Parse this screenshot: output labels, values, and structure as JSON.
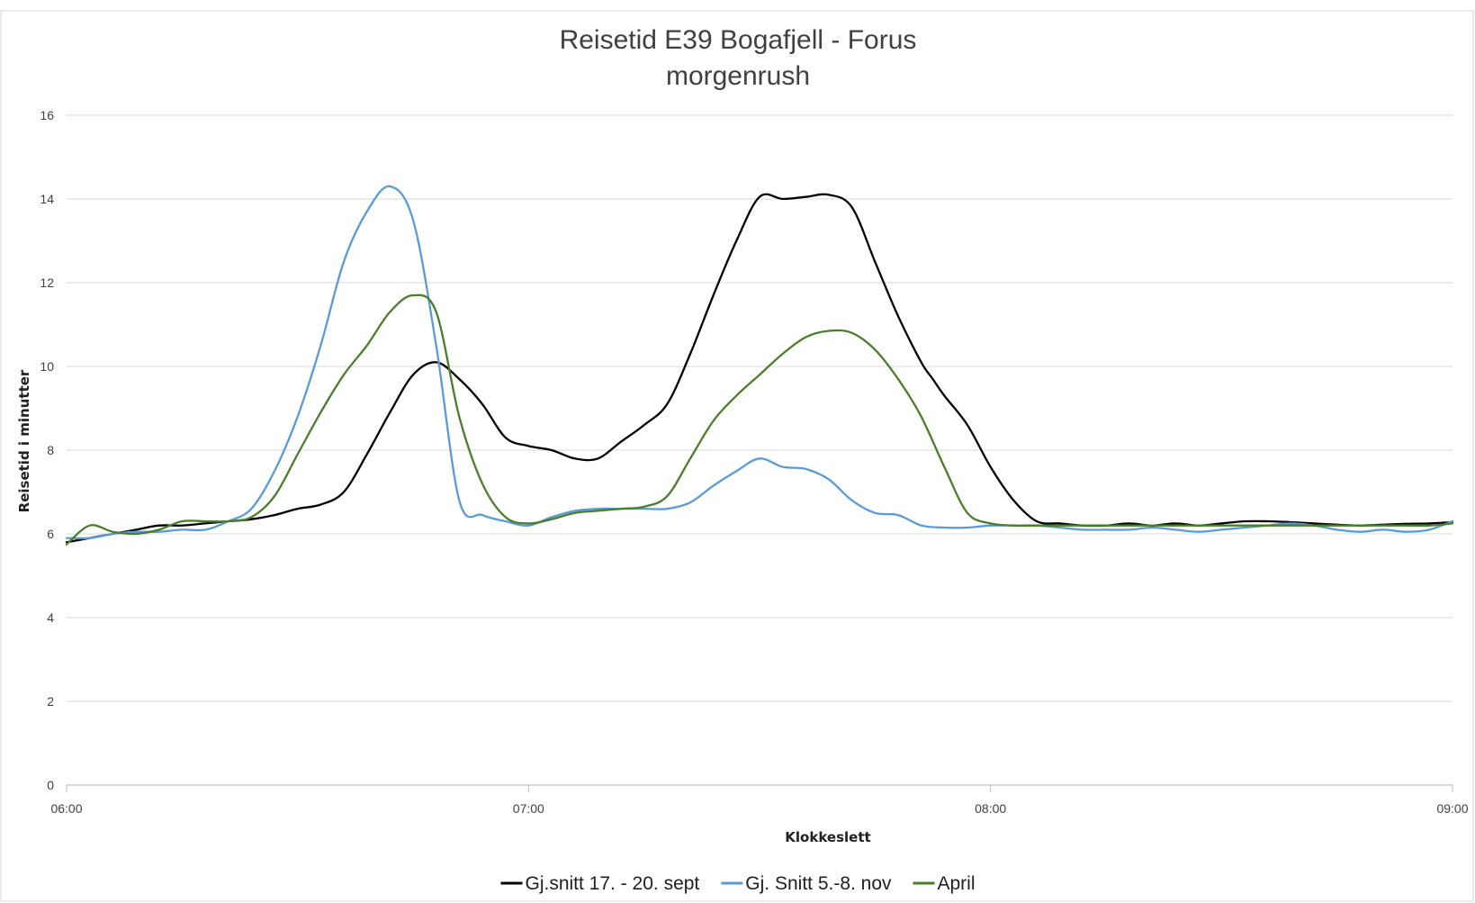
{
  "chart_data": {
    "type": "line",
    "title": "Reisetid E39 Bogafjell - Forus",
    "subtitle": "morgenrush",
    "xlabel": "Klokkeslett",
    "ylabel": "Reisetid i minutter",
    "x_ticks": [
      "06:00",
      "07:00",
      "08:00",
      "09:00"
    ],
    "xlim": [
      0,
      180
    ],
    "y_ticks": [
      "0",
      "2",
      "4",
      "6",
      "8",
      "10",
      "12",
      "14",
      "16"
    ],
    "ylim": [
      0,
      16
    ],
    "grid": "horizontal",
    "legend_position": "bottom",
    "series": [
      {
        "name": "Gj.snitt 17. - 20. sept",
        "color": "#000000",
        "x": [
          0,
          3,
          6,
          9,
          12,
          15,
          18,
          21,
          24,
          27,
          30,
          33,
          36,
          39,
          42,
          45,
          48,
          51,
          54,
          57,
          60,
          63,
          66,
          69,
          72,
          75,
          78,
          81,
          84,
          87,
          90,
          93,
          96,
          99,
          102,
          105,
          108,
          111,
          112.5,
          114,
          117,
          120,
          123,
          126,
          129,
          132,
          135,
          138,
          141,
          144,
          147,
          150,
          153,
          156,
          159,
          162,
          165,
          168,
          171,
          174,
          177,
          180
        ],
        "values": [
          5.8,
          5.9,
          6.0,
          6.1,
          6.2,
          6.2,
          6.25,
          6.3,
          6.35,
          6.45,
          6.6,
          6.7,
          7.0,
          7.9,
          8.9,
          9.8,
          10.1,
          9.7,
          9.1,
          8.3,
          8.1,
          8.0,
          7.8,
          7.8,
          8.2,
          8.6,
          9.1,
          10.3,
          11.7,
          13.0,
          14.05,
          14.0,
          14.05,
          14.1,
          13.8,
          12.5,
          11.2,
          10.1,
          9.7,
          9.3,
          8.6,
          7.6,
          6.8,
          6.3,
          6.25,
          6.2,
          6.2,
          6.25,
          6.2,
          6.25,
          6.2,
          6.25,
          6.3,
          6.3,
          6.28,
          6.25,
          6.22,
          6.2,
          6.22,
          6.24,
          6.25,
          6.28
        ]
      },
      {
        "name": "Gj. Snitt 5.-8. nov",
        "color": "#5b9bd5",
        "x": [
          0,
          3,
          6,
          9,
          12,
          15,
          18,
          21,
          24,
          27,
          30,
          33,
          36,
          39,
          42,
          45,
          48,
          51,
          54,
          57,
          60,
          63,
          66,
          69,
          72,
          75,
          78,
          81,
          84,
          87,
          90,
          93,
          96,
          99,
          102,
          105,
          108,
          111,
          114,
          117,
          120,
          123,
          126,
          129,
          132,
          135,
          138,
          141,
          144,
          147,
          150,
          153,
          156,
          159,
          162,
          165,
          168,
          171,
          174,
          177,
          180
        ],
        "values": [
          5.9,
          5.9,
          6.0,
          6.05,
          6.05,
          6.1,
          6.1,
          6.3,
          6.6,
          7.5,
          8.8,
          10.5,
          12.5,
          13.7,
          14.3,
          13.5,
          10.5,
          6.8,
          6.45,
          6.3,
          6.2,
          6.4,
          6.55,
          6.6,
          6.6,
          6.6,
          6.6,
          6.75,
          7.15,
          7.5,
          7.8,
          7.6,
          7.55,
          7.3,
          6.8,
          6.5,
          6.45,
          6.2,
          6.15,
          6.15,
          6.2,
          6.2,
          6.2,
          6.15,
          6.1,
          6.1,
          6.1,
          6.15,
          6.1,
          6.05,
          6.1,
          6.15,
          6.2,
          6.25,
          6.2,
          6.1,
          6.05,
          6.1,
          6.05,
          6.1,
          6.3
        ]
      },
      {
        "name": "April",
        "color": "#4a7d2c",
        "x": [
          0,
          3,
          6,
          9,
          12,
          15,
          18,
          21,
          24,
          27,
          30,
          33,
          36,
          39,
          42,
          45,
          48,
          51,
          54,
          57,
          60,
          63,
          66,
          69,
          72,
          75,
          78,
          81,
          84,
          87,
          90,
          93,
          96,
          99,
          102,
          105,
          108,
          111,
          114,
          117,
          120,
          123,
          126,
          129,
          132,
          135,
          138,
          141,
          144,
          147,
          150,
          153,
          156,
          159,
          162,
          165,
          168,
          171,
          174,
          177,
          180
        ],
        "values": [
          5.75,
          6.2,
          6.05,
          6.0,
          6.1,
          6.3,
          6.3,
          6.3,
          6.4,
          6.9,
          7.9,
          8.9,
          9.8,
          10.5,
          11.3,
          11.7,
          11.3,
          8.8,
          7.2,
          6.4,
          6.25,
          6.35,
          6.5,
          6.55,
          6.6,
          6.65,
          6.9,
          7.8,
          8.7,
          9.3,
          9.8,
          10.3,
          10.7,
          10.85,
          10.8,
          10.4,
          9.7,
          8.8,
          7.6,
          6.5,
          6.25,
          6.2,
          6.2,
          6.2,
          6.2,
          6.2,
          6.2,
          6.2,
          6.2,
          6.2,
          6.2,
          6.2,
          6.2,
          6.2,
          6.2,
          6.2,
          6.2,
          6.2,
          6.2,
          6.2,
          6.25
        ]
      }
    ]
  }
}
